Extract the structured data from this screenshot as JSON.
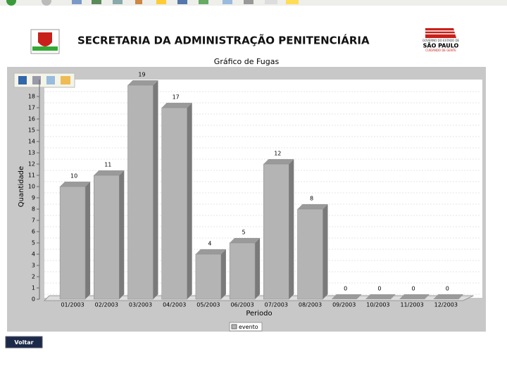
{
  "header": {
    "title": "SECRETARIA DA ADMINISTRAÇÃO PENITENCIÁRIA",
    "logo_top": "GOVERNO DO ESTADO DE",
    "logo_name": "SÃO PAULO",
    "logo_slogan": "CUIDANDO DE GENTE"
  },
  "chart_data": {
    "type": "bar",
    "title": "Gráfico de Fugas",
    "x_label": "Periodo",
    "y_label": "Quantidade",
    "categories": [
      "01/2003",
      "02/2003",
      "03/2003",
      "04/2003",
      "05/2003",
      "06/2003",
      "07/2003",
      "08/2003",
      "09/2003",
      "10/2003",
      "11/2003",
      "12/2003"
    ],
    "series": [
      {
        "name": "evento",
        "color": "#b4b4b4",
        "values": [
          10,
          11,
          19,
          17,
          4,
          5,
          12,
          8,
          0,
          0,
          0,
          0
        ]
      }
    ],
    "ylim": [
      0,
      19
    ],
    "yticks": [
      0,
      1,
      2,
      3,
      4,
      5,
      6,
      7,
      8,
      9,
      10,
      11,
      12,
      13,
      14,
      15,
      16,
      17,
      18
    ],
    "grid": true,
    "legend": "bottom"
  },
  "button": {
    "label": "Voltar"
  }
}
